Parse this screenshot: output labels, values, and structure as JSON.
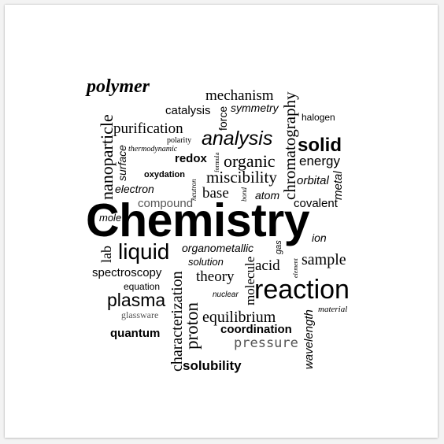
{
  "words": {
    "polymer": "polymer",
    "mechanism": "mechanism",
    "chromatography": "chromatography",
    "catalysis": "catalysis",
    "symmetry": "symmetry",
    "force": "force",
    "halogen": "halogen",
    "nanoparticle": "nanoparticle",
    "purification": "purification",
    "polarity": "polarity",
    "thermodynamic": "thermodynamic",
    "surface": "surface",
    "analysis": "analysis",
    "solid": "solid",
    "redox": "redox",
    "formula": "formula",
    "organic": "organic",
    "energy": "energy",
    "oxydation": "oxydation",
    "neutron": "neutron",
    "miscibility": "miscibility",
    "orbital": "orbital",
    "metal": "metal",
    "electron": "electron",
    "base": "base",
    "bond": "bond",
    "atom": "atom",
    "compound": "compound",
    "covalent": "covalent",
    "chemistry": "Chemistry",
    "mole": "mole",
    "ion": "ion",
    "lab": "lab",
    "liquid": "liquid",
    "gas": "gas",
    "organometallic": "organometallic",
    "solution": "solution",
    "acid": "acid",
    "element": "element",
    "sample": "sample",
    "spectroscopy": "spectroscopy",
    "theory": "theory",
    "characterization": "characterization",
    "molecule": "molecule",
    "equation": "equation",
    "reaction": "reaction",
    "plasma": "plasma",
    "nuclear": "nuclear",
    "glassware": "glassware",
    "proton": "proton",
    "equilibrium": "equilibrium",
    "material": "material",
    "quantum": "quantum",
    "coordination": "coordination",
    "wavelength": "wavelength",
    "pressure": "pressure",
    "solubility": "solubility"
  }
}
